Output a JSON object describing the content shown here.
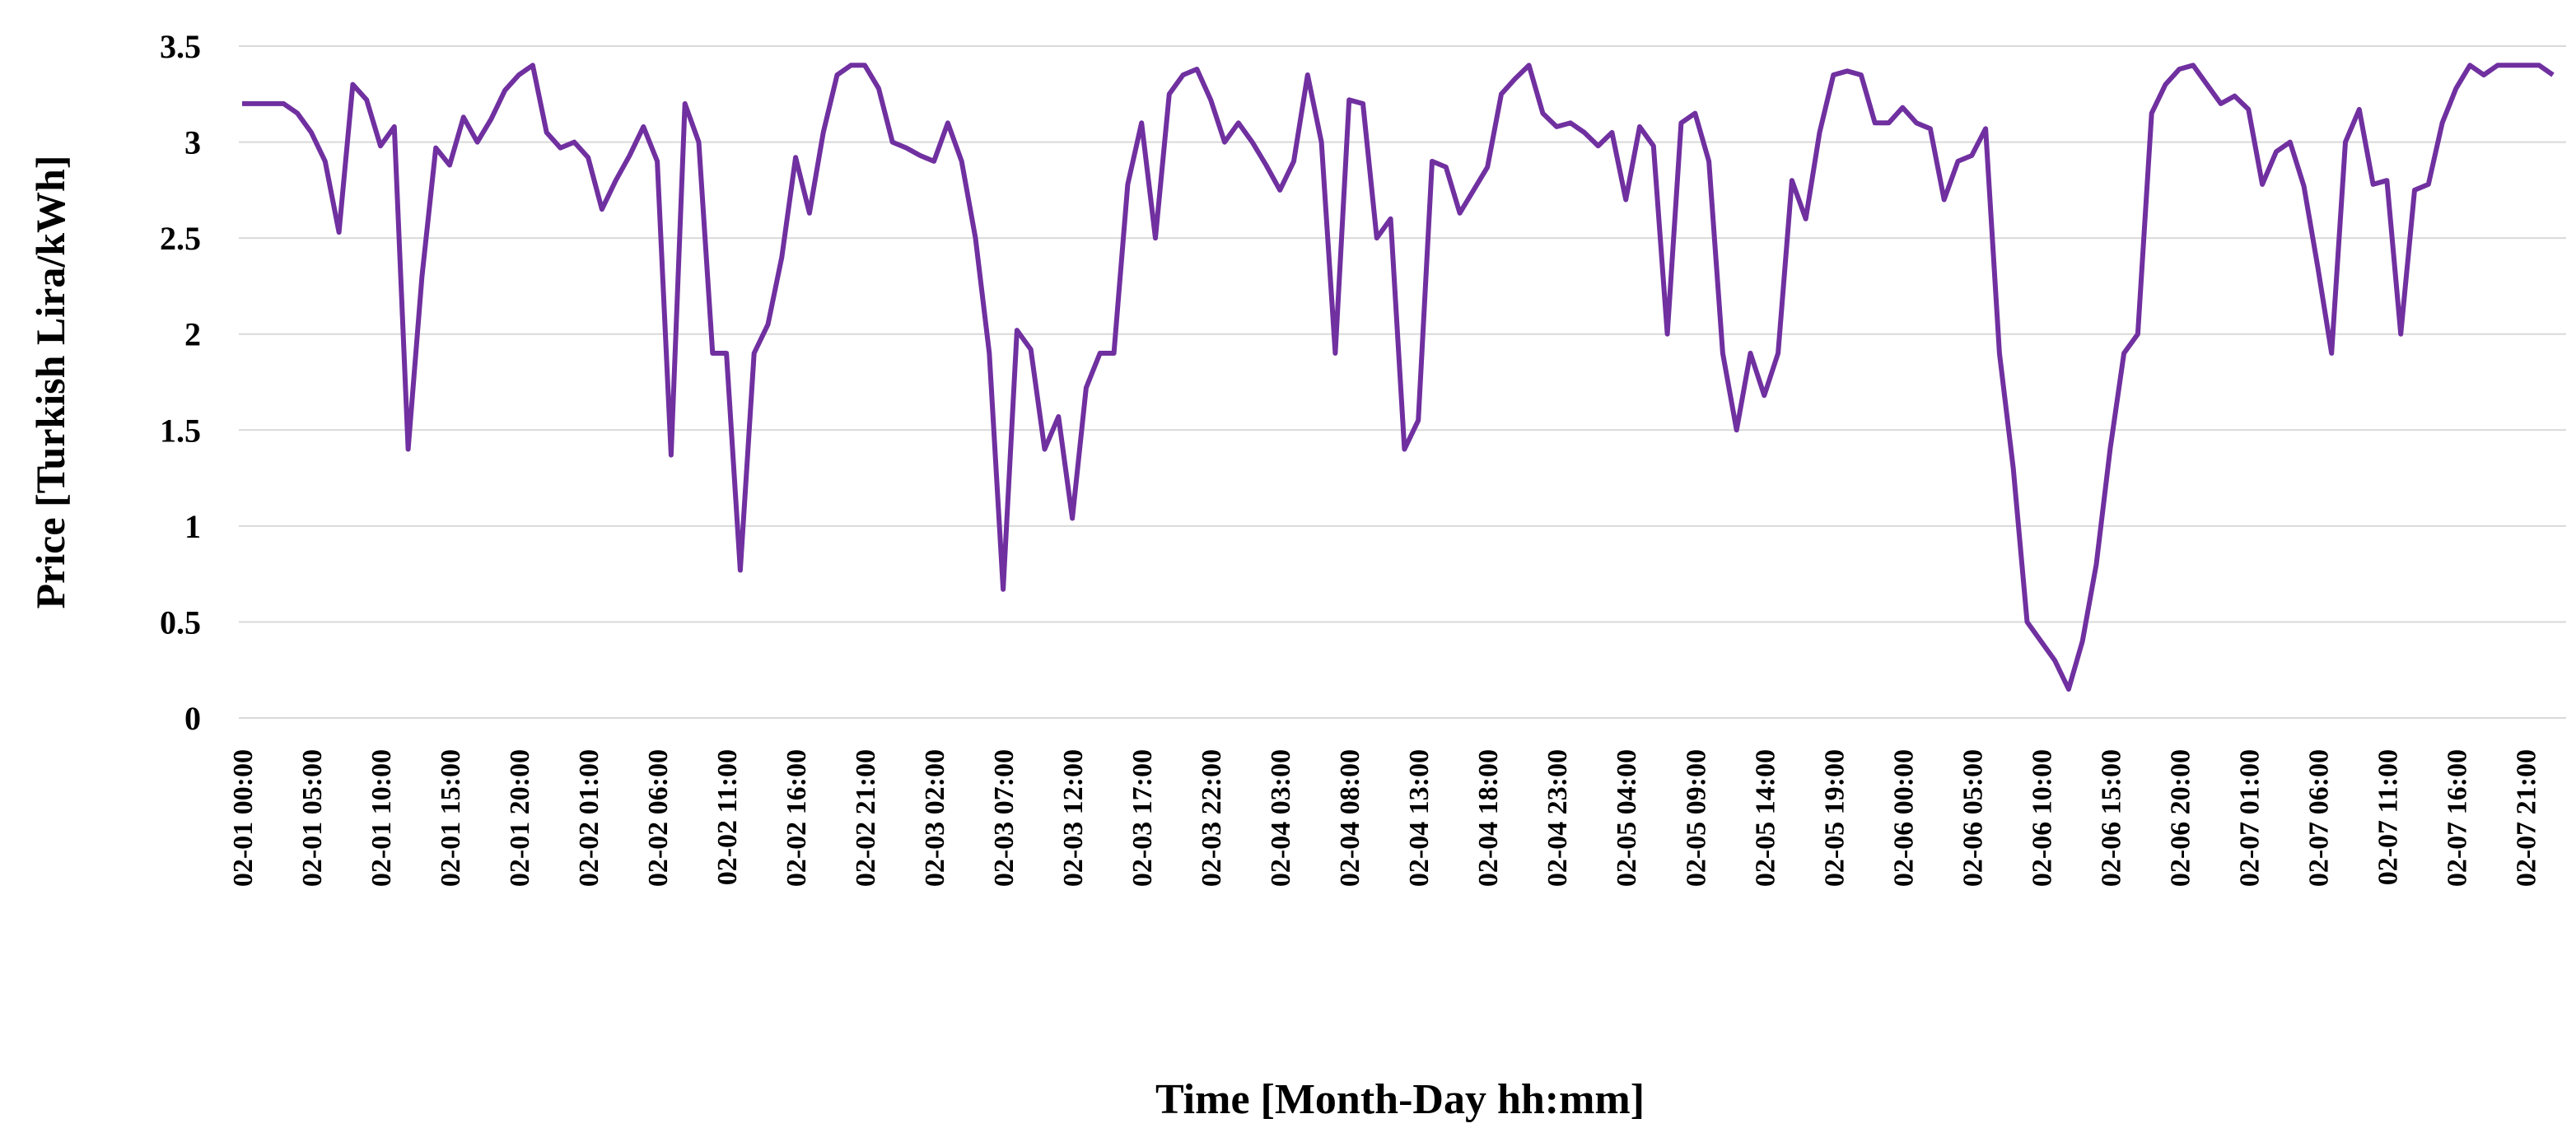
{
  "chart_data": {
    "type": "line",
    "x_label": "Time [Month-Day hh:mm]",
    "y_label": "Price [Turkish  Lira/kWh]",
    "color": "#7030a0",
    "grid": true,
    "ylim": [
      0,
      3.5
    ],
    "yticks": [
      0,
      0.5,
      1,
      1.5,
      2,
      2.5,
      3,
      3.5
    ],
    "categories": [
      "02-01 00:00",
      null,
      null,
      null,
      null,
      "02-01 05:00",
      null,
      null,
      null,
      null,
      "02-01 10:00",
      null,
      null,
      null,
      null,
      "02-01 15:00",
      null,
      null,
      null,
      null,
      "02-01 20:00",
      null,
      null,
      null,
      null,
      "02-02 01:00",
      null,
      null,
      null,
      null,
      "02-02 06:00",
      null,
      null,
      null,
      null,
      "02-02 11:00",
      null,
      null,
      null,
      null,
      "02-02 16:00",
      null,
      null,
      null,
      null,
      "02-02 21:00",
      null,
      null,
      null,
      null,
      "02-03 02:00",
      null,
      null,
      null,
      null,
      "02-03 07:00",
      null,
      null,
      null,
      null,
      "02-03 12:00",
      null,
      null,
      null,
      null,
      "02-03 17:00",
      null,
      null,
      null,
      null,
      "02-03 22:00",
      null,
      null,
      null,
      null,
      "02-04 03:00",
      null,
      null,
      null,
      null,
      "02-04 08:00",
      null,
      null,
      null,
      null,
      "02-04 13:00",
      null,
      null,
      null,
      null,
      "02-04 18:00",
      null,
      null,
      null,
      null,
      "02-04 23:00",
      null,
      null,
      null,
      null,
      "02-05 04:00",
      null,
      null,
      null,
      null,
      "02-05 09:00",
      null,
      null,
      null,
      null,
      "02-05 14:00",
      null,
      null,
      null,
      null,
      "02-05 19:00",
      null,
      null,
      null,
      null,
      "02-06 00:00",
      null,
      null,
      null,
      null,
      "02-06 05:00",
      null,
      null,
      null,
      null,
      "02-06 10:00",
      null,
      null,
      null,
      null,
      "02-06 15:00",
      null,
      null,
      null,
      null,
      "02-06 20:00",
      null,
      null,
      null,
      null,
      "02-07 01:00",
      null,
      null,
      null,
      null,
      "02-07 06:00",
      null,
      null,
      null,
      null,
      "02-07 11:00",
      null,
      null,
      null,
      null,
      "02-07 16:00",
      null,
      null,
      null,
      null,
      "02-07 21:00",
      null,
      null
    ],
    "values": [
      3.2,
      3.2,
      3.2,
      3.2,
      3.15,
      3.05,
      2.9,
      2.53,
      3.3,
      3.22,
      2.98,
      3.08,
      1.4,
      2.3,
      2.97,
      2.88,
      3.13,
      3.0,
      3.12,
      3.27,
      3.35,
      3.4,
      3.05,
      2.97,
      3.0,
      2.92,
      2.65,
      2.8,
      2.93,
      3.08,
      2.9,
      1.37,
      3.2,
      3.0,
      1.9,
      1.9,
      0.77,
      1.9,
      2.05,
      2.4,
      2.92,
      2.63,
      3.05,
      3.35,
      3.4,
      3.4,
      3.28,
      3.0,
      2.97,
      2.93,
      2.9,
      3.1,
      2.9,
      2.5,
      1.9,
      0.67,
      2.02,
      1.92,
      1.4,
      1.57,
      1.04,
      1.72,
      1.9,
      1.9,
      2.78,
      3.1,
      2.5,
      3.25,
      3.35,
      3.38,
      3.22,
      3.0,
      3.1,
      3.0,
      2.88,
      2.75,
      2.9,
      3.35,
      3.0,
      1.9,
      3.22,
      3.2,
      2.5,
      2.6,
      1.4,
      1.55,
      2.9,
      2.87,
      2.63,
      2.75,
      2.87,
      3.25,
      3.33,
      3.4,
      3.15,
      3.08,
      3.1,
      3.05,
      2.98,
      3.05,
      2.7,
      3.08,
      2.98,
      2.0,
      3.1,
      3.15,
      2.9,
      1.9,
      1.5,
      1.9,
      1.68,
      1.9,
      2.8,
      2.6,
      3.05,
      3.35,
      3.37,
      3.35,
      3.1,
      3.1,
      3.18,
      3.1,
      3.07,
      2.7,
      2.9,
      2.93,
      3.07,
      1.9,
      1.3,
      0.5,
      0.4,
      0.3,
      0.15,
      0.4,
      0.8,
      1.4,
      1.9,
      2.0,
      3.15,
      3.3,
      3.38,
      3.4,
      3.3,
      3.2,
      3.24,
      3.17,
      2.78,
      2.95,
      3.0,
      2.77,
      2.35,
      1.9,
      3.0,
      3.17,
      2.78,
      2.8,
      2.0,
      2.75,
      2.78,
      3.1,
      3.28,
      3.4,
      3.35,
      3.4,
      3.4,
      3.4,
      3.4,
      3.35
    ]
  }
}
